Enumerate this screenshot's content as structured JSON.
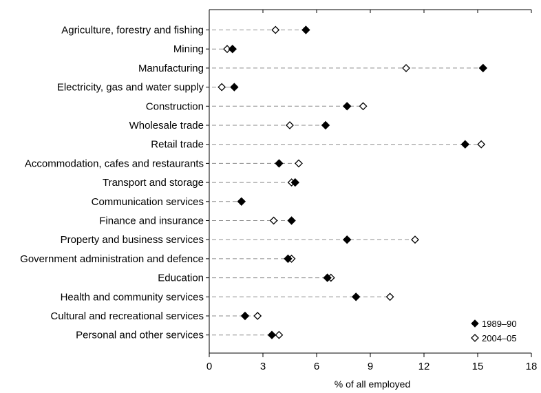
{
  "colors": {
    "series_1989": "#000000",
    "series_2004": "#ffffff",
    "axis": "#000000",
    "guide": "#8a8a8a"
  },
  "chart_data": {
    "type": "scatter",
    "xlabel": "% of all employed",
    "xlim": [
      0,
      18
    ],
    "xticks": [
      0,
      3,
      6,
      9,
      12,
      15,
      18
    ],
    "grid": false,
    "legend_position": "bottom-right",
    "categories": [
      "Agriculture, forestry and fishing",
      "Mining",
      "Manufacturing",
      "Electricity, gas and water supply",
      "Construction",
      "Wholesale trade",
      "Retail trade",
      "Accommodation, cafes and restaurants",
      "Transport and storage",
      "Communication services",
      "Finance and insurance",
      "Property and business services",
      "Government administration and defence",
      "Education",
      "Health and community services",
      "Cultural and recreational services",
      "Personal and other services"
    ],
    "series": [
      {
        "name": "1989–90",
        "marker": "filled-diamond",
        "values": [
          5.4,
          1.3,
          15.3,
          1.4,
          7.7,
          6.5,
          14.3,
          3.9,
          4.8,
          1.8,
          4.6,
          7.7,
          4.4,
          6.6,
          8.2,
          2.0,
          3.5
        ]
      },
      {
        "name": "2004–05",
        "marker": "open-diamond",
        "values": [
          3.7,
          1.0,
          11.0,
          0.7,
          8.6,
          4.5,
          15.2,
          5.0,
          4.6,
          1.8,
          3.6,
          11.5,
          4.6,
          6.8,
          10.1,
          2.7,
          3.9
        ]
      }
    ]
  }
}
